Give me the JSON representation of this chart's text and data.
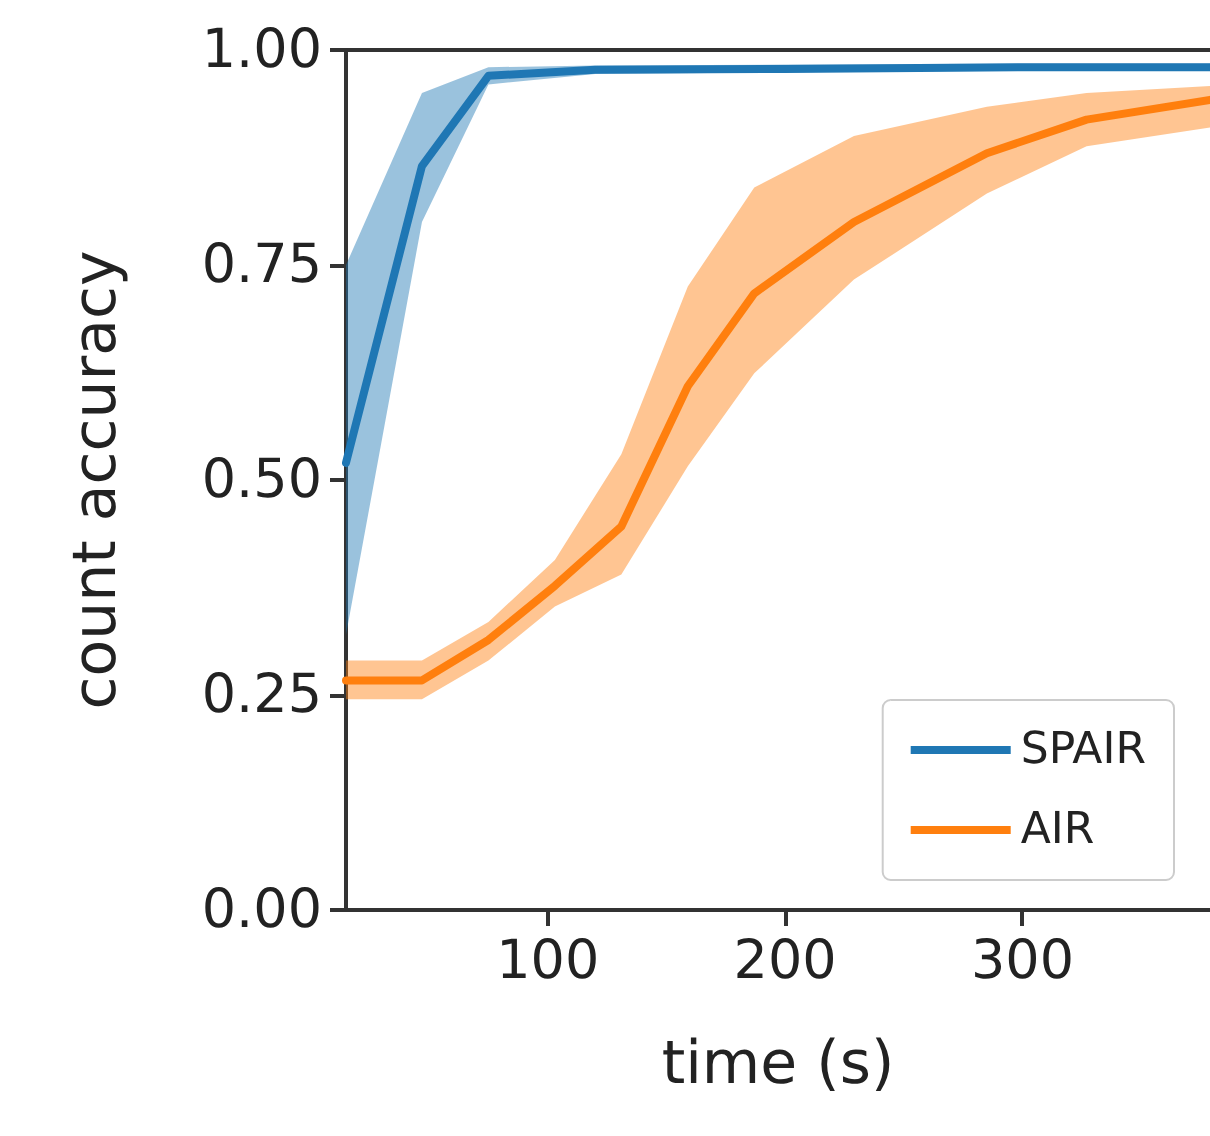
{
  "chart_data": {
    "type": "line",
    "xlabel": "time (s)",
    "ylabel": "count accuracy",
    "xlim": [
      15,
      379
    ],
    "xticks": [
      100,
      200,
      300
    ],
    "ylim": [
      0,
      1
    ],
    "yticks": [
      {
        "value": 0,
        "label": "0.00"
      },
      {
        "value": 0.25,
        "label": "0.25"
      },
      {
        "value": 0.5,
        "label": "0.50"
      },
      {
        "value": 0.75,
        "label": "0.75"
      },
      {
        "value": 1,
        "label": "1.00"
      }
    ],
    "grid": false,
    "legend": "bottom right",
    "marker": "none",
    "line_style": "solid",
    "series": [
      {
        "name": "SPAIR",
        "color": "#1f77b4",
        "x": [
          15,
          47,
          75,
          120,
          200,
          300,
          379
        ],
        "values": [
          0.52,
          0.865,
          0.97,
          0.977,
          0.978,
          0.98,
          0.98
        ],
        "lower": [
          0.32,
          0.8,
          0.96,
          0.972,
          0.974,
          0.976,
          0.976
        ],
        "upper": [
          0.75,
          0.95,
          0.98,
          0.982,
          0.983,
          0.984,
          0.984
        ]
      },
      {
        "name": "AIR",
        "color": "#ff7f0e",
        "x": [
          15,
          47,
          75,
          103,
          131,
          159,
          187,
          229,
          285,
          327,
          379
        ],
        "values": [
          0.267,
          0.267,
          0.314,
          0.377,
          0.446,
          0.609,
          0.717,
          0.8,
          0.88,
          0.919,
          0.942
        ],
        "lower": [
          0.245,
          0.245,
          0.29,
          0.353,
          0.39,
          0.516,
          0.624,
          0.733,
          0.833,
          0.888,
          0.91
        ],
        "upper": [
          0.29,
          0.29,
          0.335,
          0.407,
          0.53,
          0.725,
          0.84,
          0.9,
          0.934,
          0.95,
          0.958
        ]
      }
    ]
  }
}
